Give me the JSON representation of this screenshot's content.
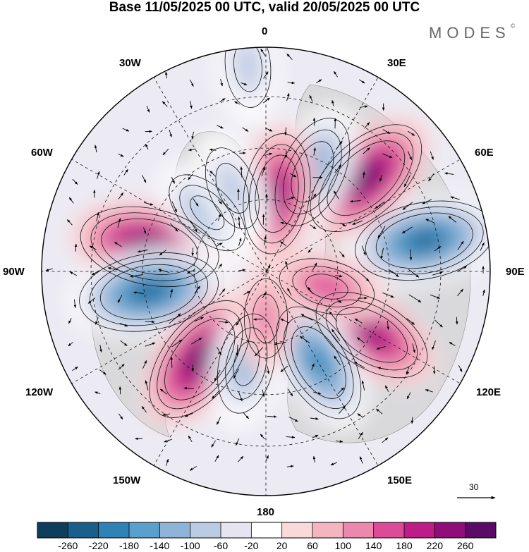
{
  "title": "Base 11/05/2025 00 UTC, valid 20/05/2025 00 UTC",
  "brand": "MODES",
  "brand_mark": "©",
  "longitude_labels": {
    "top": "0",
    "bottom": "180",
    "left": "90W",
    "right": "90E",
    "upper_left_a": "30W",
    "upper_left_b": "60W",
    "upper_right_a": "30E",
    "upper_right_b": "60E",
    "lower_left_a": "120W",
    "lower_left_b": "150W",
    "lower_right_a": "120E",
    "lower_right_b": "150E"
  },
  "vector_scale": "30",
  "colorbar": {
    "colors": [
      "#0f3d5c",
      "#1a5f8c",
      "#2f82b5",
      "#5aa0cc",
      "#8eb4d8",
      "#bccbe4",
      "#e5e4f0",
      "#ffffff",
      "#f9d9da",
      "#f4b5c0",
      "#ec87ad",
      "#db4b98",
      "#bd1d87",
      "#8f0e79",
      "#5c0a68"
    ],
    "labels": [
      "-260",
      "-220",
      "-180",
      "-140",
      "-100",
      "-60",
      "-20",
      "20",
      "60",
      "100",
      "140",
      "180",
      "220",
      "260"
    ]
  },
  "anomalies": [
    {
      "lon": -78,
      "r": 0.53,
      "value": 250
    },
    {
      "lon": -100,
      "r": 0.53,
      "value": -250
    },
    {
      "lon": -143,
      "r": 0.49,
      "value": 230
    },
    {
      "lon": 79,
      "r": 0.72,
      "value": -250
    },
    {
      "lon": 47,
      "r": 0.61,
      "value": 230
    },
    {
      "lon": 25,
      "r": 0.49,
      "value": -170
    },
    {
      "lon": 8,
      "r": 0.35,
      "value": 180
    },
    {
      "lon": 121,
      "r": 0.55,
      "value": 190
    },
    {
      "lon": 150,
      "r": 0.47,
      "value": -190
    },
    {
      "lon": -168,
      "r": 0.42,
      "value": -130
    },
    {
      "lon": -45,
      "r": 0.37,
      "value": -100
    },
    {
      "lon": -22,
      "r": 0.4,
      "value": -90
    },
    {
      "lon": 104,
      "r": 0.28,
      "value": 110
    },
    {
      "lon": 180,
      "r": 0.21,
      "value": 60
    },
    {
      "lon": -5,
      "r": 0.92,
      "value": -80
    }
  ]
}
